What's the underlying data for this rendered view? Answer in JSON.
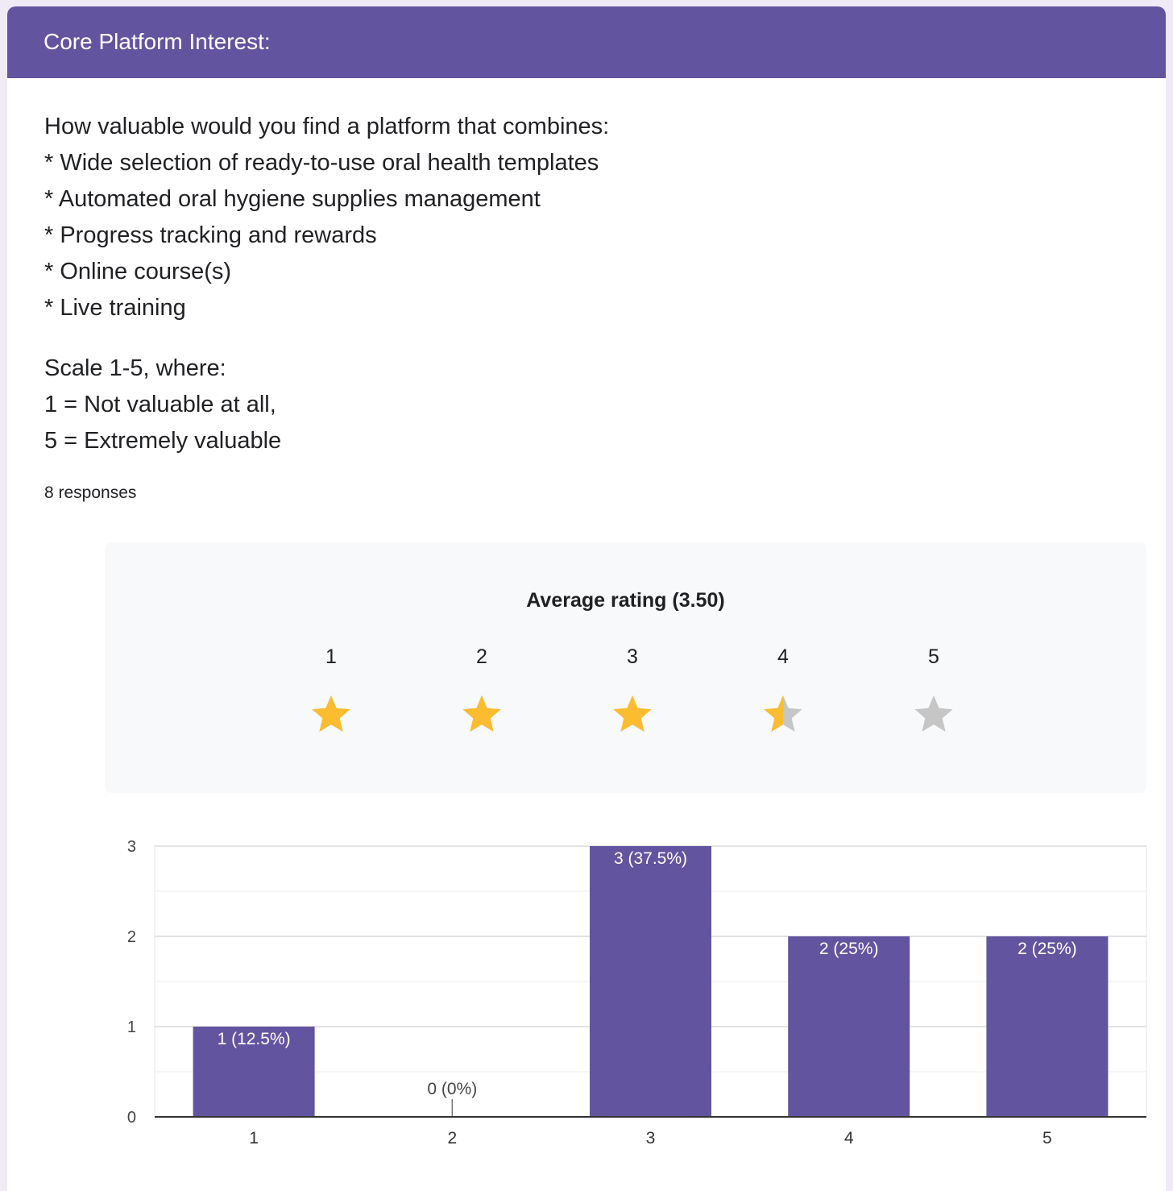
{
  "card": {
    "title": "Core Platform Interest:",
    "header_color": "#6354a0"
  },
  "question": {
    "lines": [
      "How valuable would you find a platform that combines:",
      "* Wide selection of ready-to-use oral health templates",
      "* Automated oral hygiene supplies management",
      "* Progress tracking and rewards",
      "* Online course(s)",
      "* Live training"
    ],
    "scale_lines": [
      "Scale 1-5, where:",
      "1 = Not valuable at all,",
      "5 = Extremely valuable"
    ]
  },
  "responses": "8 responses",
  "rating": {
    "title": "Average rating (3.50)",
    "average": 3.5,
    "max": 5,
    "star_labels": [
      "1",
      "2",
      "3",
      "4",
      "5"
    ],
    "filled_color": "#fbbc2f",
    "empty_color": "#c6c6c6",
    "icon": "star-icon"
  },
  "chart_data": {
    "type": "bar",
    "categories": [
      "1",
      "2",
      "3",
      "4",
      "5"
    ],
    "values": [
      1,
      0,
      3,
      2,
      2
    ],
    "data_labels": [
      "1 (12.5%)",
      "0 (0%)",
      "3 (37.5%)",
      "2 (25%)",
      "2 (25%)"
    ],
    "y_ticks": [
      "0",
      "1",
      "2",
      "3"
    ],
    "ylim": [
      0,
      3
    ],
    "title": "",
    "xlabel": "",
    "ylabel": "",
    "grid": true,
    "bar_color": "#6354a0"
  }
}
